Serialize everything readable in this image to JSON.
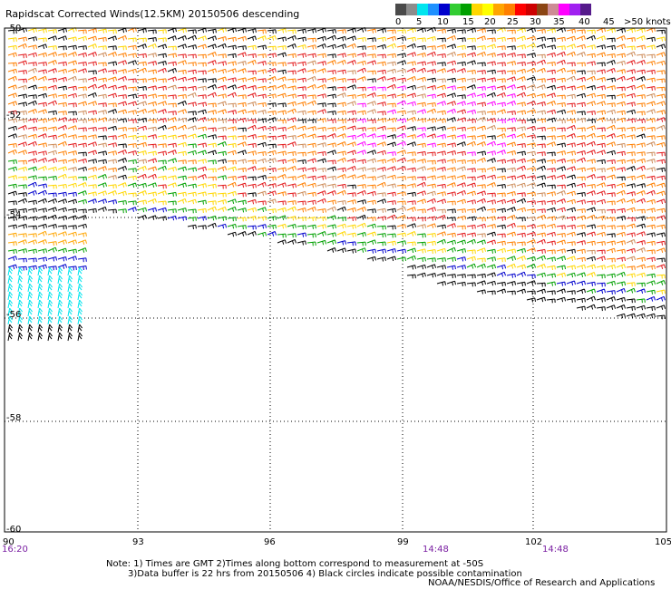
{
  "title": "Rapidscat Corrected Winds(12.5KM) 20150506 descending",
  "colorbar": {
    "unit_label": ">50 knots",
    "tick_labels": [
      "0",
      "5",
      "10",
      "15",
      "20",
      "25",
      "30",
      "35",
      "40",
      "45"
    ],
    "colors": [
      "#4a4a4a",
      "#8c8c8c",
      "#00e5ee",
      "#1e90ff",
      "#0000cd",
      "#32cd32",
      "#00a000",
      "#ffd700",
      "#ffff00",
      "#ffa500",
      "#ff7f00",
      "#ff0000",
      "#cd0000",
      "#8b4513",
      "#cd8c95",
      "#ff00ff",
      "#a020f0",
      "#551a8b"
    ]
  },
  "map": {
    "lat_labels": [
      "-50",
      "-52",
      "-54",
      "-56",
      "-58",
      "-60"
    ],
    "lon_labels": [
      "90",
      "93",
      "96",
      "99",
      "102",
      "105"
    ],
    "time_labels": [
      "16:20",
      "14:48",
      "14:48"
    ]
  },
  "notes": {
    "line1": "Note: 1) Times are GMT 2)Times along bottom correspond to measurement at -50S",
    "line2": "3)Data buffer is 22 hrs from 20150506 4) Black circles indicate possible contamination"
  },
  "credit": "NOAA/NESDIS/Office of Research and Applications"
}
